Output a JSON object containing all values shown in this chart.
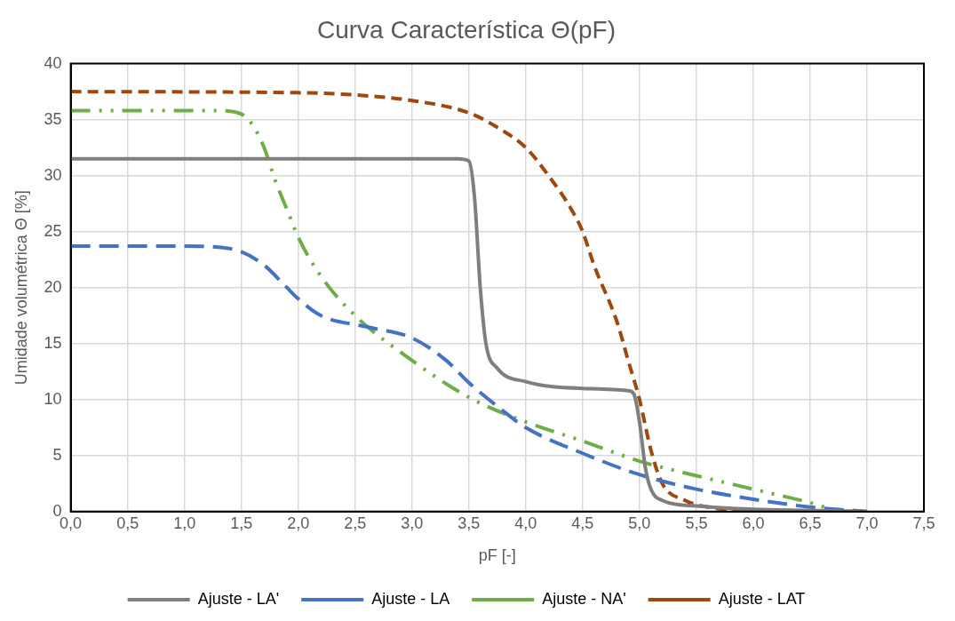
{
  "chart_data": {
    "type": "line",
    "title": "Curva Característica Θ(pF)",
    "xlabel": "pF [-]",
    "ylabel": "Umidade volumétrica Θ [%]",
    "xlim": [
      0,
      7.5
    ],
    "xticks": [
      {
        "value": 0,
        "label": "0,0"
      },
      {
        "value": 0.5,
        "label": "0,5"
      },
      {
        "value": 1,
        "label": "1,0"
      },
      {
        "value": 1.5,
        "label": "1,5"
      },
      {
        "value": 2,
        "label": "2,0"
      },
      {
        "value": 2.5,
        "label": "2,5"
      },
      {
        "value": 3,
        "label": "3,0"
      },
      {
        "value": 3.5,
        "label": "3,5"
      },
      {
        "value": 4,
        "label": "4,0"
      },
      {
        "value": 4.5,
        "label": "4,5"
      },
      {
        "value": 5,
        "label": "5,0"
      },
      {
        "value": 5.5,
        "label": "5,5"
      },
      {
        "value": 6,
        "label": "6,0"
      },
      {
        "value": 6.5,
        "label": "6,5"
      },
      {
        "value": 7,
        "label": "7,0"
      },
      {
        "value": 7.5,
        "label": "7,5"
      }
    ],
    "ylim": [
      0,
      40
    ],
    "yticks": [
      0,
      5,
      10,
      15,
      20,
      25,
      30,
      35,
      40
    ],
    "grid": true,
    "legend": "bottom",
    "marker": "none",
    "series": [
      {
        "name": "Ajuste - LA'",
        "color": "#7f7f7f",
        "line_style": "solid",
        "x": [
          0,
          3.4,
          3.5,
          3.55,
          3.6,
          3.65,
          3.75,
          4.0,
          4.5,
          4.9,
          4.95,
          5.0,
          5.05,
          5.1,
          5.2,
          5.5,
          6.0,
          6.5,
          7.0
        ],
        "values": [
          31.5,
          31.5,
          31.3,
          28,
          20,
          15,
          12.8,
          11.6,
          11.0,
          10.8,
          10.5,
          8,
          4,
          2,
          1,
          0.5,
          0.2,
          0.1,
          0
        ]
      },
      {
        "name": "Ajuste - LA",
        "color": "#4472c4",
        "line_style": "dashed",
        "x": [
          0,
          1.0,
          1.3,
          1.5,
          1.7,
          1.9,
          2.0,
          2.2,
          2.6,
          3.0,
          3.3,
          3.5,
          3.8,
          4.0,
          4.5,
          5.0,
          5.5,
          6.0,
          6.5,
          7.0
        ],
        "values": [
          23.7,
          23.7,
          23.6,
          23.2,
          22,
          20,
          19,
          17.5,
          16.5,
          15.5,
          13.5,
          11.5,
          9,
          7.5,
          5.2,
          3.3,
          2.0,
          1.1,
          0.4,
          0
        ]
      },
      {
        "name": "Ajuste - NA'",
        "color": "#70ad47",
        "line_style": "dashed",
        "x": [
          0,
          1.3,
          1.5,
          1.6,
          1.7,
          1.8,
          1.9,
          2.0,
          2.2,
          2.5,
          3.0,
          3.5,
          4.0,
          4.5,
          5.0,
          5.5,
          6.0,
          6.5,
          6.8,
          7.0
        ],
        "values": [
          35.8,
          35.8,
          35.5,
          34.5,
          32.5,
          29.5,
          27,
          24.5,
          21,
          17.5,
          13.5,
          10.2,
          8.0,
          6.3,
          4.5,
          3.2,
          2.0,
          0.8,
          0,
          0
        ]
      },
      {
        "name": "Ajuste - LAT",
        "color": "#9e480e",
        "line_style": "dashed",
        "x": [
          0,
          2.0,
          2.5,
          3.0,
          3.5,
          3.8,
          4.0,
          4.2,
          4.4,
          4.5,
          4.6,
          4.8,
          4.9,
          5.0,
          5.1,
          5.2,
          5.4,
          5.6,
          6.0,
          7.0
        ],
        "values": [
          37.5,
          37.4,
          37.2,
          36.7,
          35.6,
          34,
          32.5,
          30,
          27,
          25,
          22,
          17,
          13.5,
          10,
          5.5,
          2.5,
          1,
          0.4,
          0.1,
          0
        ]
      }
    ]
  }
}
